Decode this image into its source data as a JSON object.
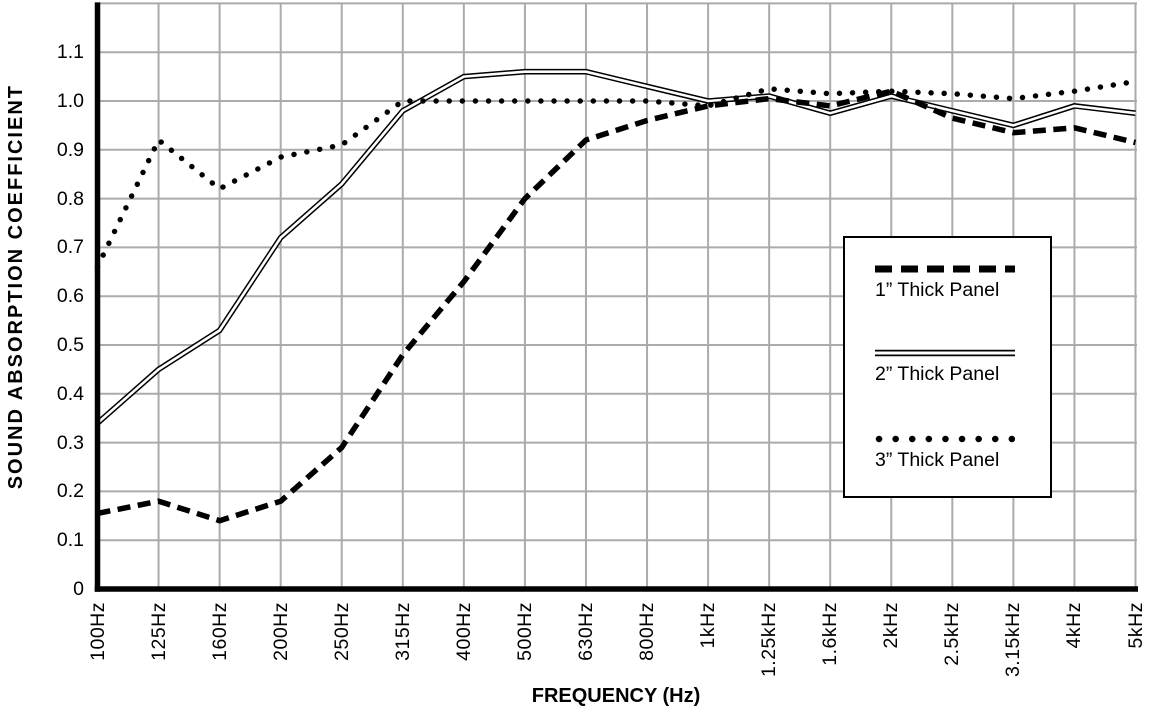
{
  "chart_data": {
    "type": "line",
    "title": "",
    "xlabel": "FREQUENCY (Hz)",
    "ylabel": "SOUND ABSORPTION COEFFICIENT",
    "categories": [
      "100Hz",
      "125Hz",
      "160Hz",
      "200Hz",
      "250Hz",
      "315Hz",
      "400Hz",
      "500Hz",
      "630Hz",
      "800Hz",
      "1kHz",
      "1.25kHz",
      "1.6kHz",
      "2kHz",
      "2.5kHz",
      "3.15kHz",
      "4kHz",
      "5kHz"
    ],
    "y_ticks": [
      "0",
      "0.1",
      "0.2",
      "0.3",
      "0.4",
      "0.5",
      "0.6",
      "0.7",
      "0.8",
      "0.9",
      "1.0",
      "1.1"
    ],
    "ylim": [
      0,
      1.2
    ],
    "grid": true,
    "legend_position": "inside-right",
    "series": [
      {
        "name": "1” Thick Panel",
        "style": "dashed",
        "values": [
          0.155,
          0.18,
          0.14,
          0.18,
          0.29,
          0.48,
          0.63,
          0.8,
          0.92,
          0.96,
          0.99,
          1.005,
          0.99,
          1.02,
          0.965,
          0.935,
          0.945,
          0.915
        ]
      },
      {
        "name": "2” Thick Panel",
        "style": "double-solid",
        "values": [
          0.34,
          0.45,
          0.53,
          0.72,
          0.83,
          0.98,
          1.05,
          1.06,
          1.06,
          1.03,
          1.0,
          1.01,
          0.975,
          1.01,
          0.98,
          0.95,
          0.99,
          0.975
        ]
      },
      {
        "name": "3” Thick Panel",
        "style": "dotted",
        "values": [
          0.66,
          0.92,
          0.82,
          0.885,
          0.91,
          1.0,
          1.0,
          1.0,
          1.0,
          1.0,
          0.99,
          1.025,
          1.015,
          1.02,
          1.015,
          1.005,
          1.02,
          1.04
        ]
      }
    ],
    "colors": {
      "line": "#000000",
      "grid": "#ababab",
      "background": "#ffffff"
    }
  }
}
